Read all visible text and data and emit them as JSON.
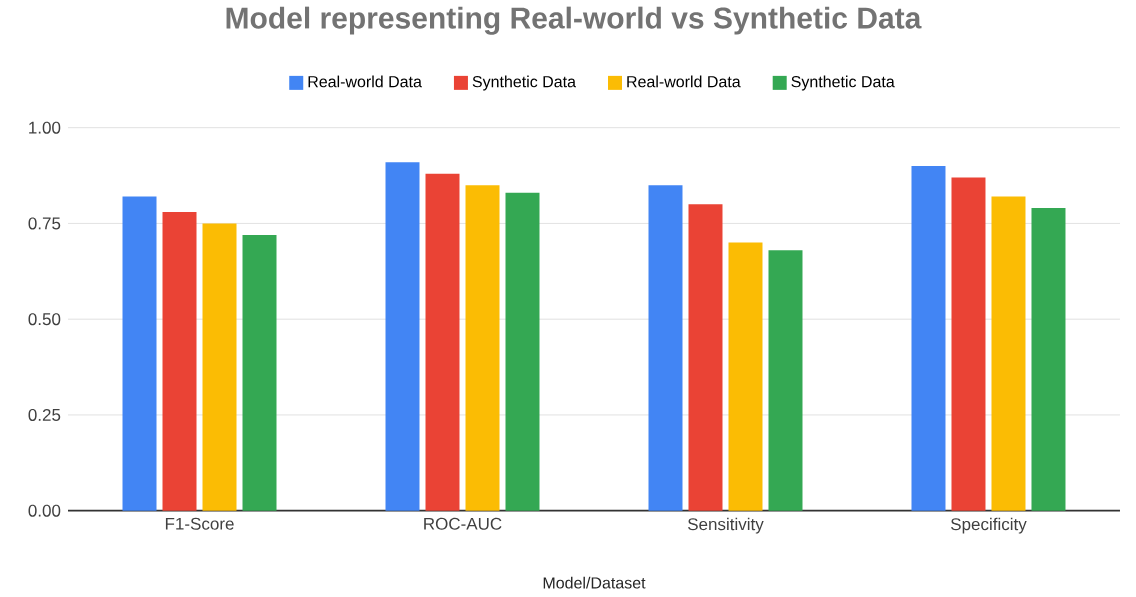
{
  "chart_data": {
    "type": "bar",
    "title": "Model representing Real-world vs Synthetic Data",
    "xlabel": "Model/Dataset",
    "categories": [
      "F1-Score",
      "ROC-AUC",
      "Sensitivity",
      "Specificity"
    ],
    "series": [
      {
        "name": "Real-world Data",
        "color": "#4285f4",
        "values": [
          0.82,
          0.91,
          0.85,
          0.9
        ]
      },
      {
        "name": "Synthetic Data",
        "color": "#ea4335",
        "values": [
          0.78,
          0.88,
          0.8,
          0.87
        ]
      },
      {
        "name": "Real-world Data",
        "color": "#fbbc04",
        "values": [
          0.75,
          0.85,
          0.7,
          0.82
        ]
      },
      {
        "name": "Synthetic Data",
        "color": "#34a853",
        "values": [
          0.72,
          0.83,
          0.68,
          0.79
        ]
      }
    ],
    "ylim": [
      0,
      1
    ],
    "yticks": [
      {
        "value": 0,
        "label": "0.00"
      },
      {
        "value": 0.25,
        "label": "0.25"
      },
      {
        "value": 0.5,
        "label": "0.50"
      },
      {
        "value": 0.75,
        "label": "0.75"
      },
      {
        "value": 1,
        "label": "1.00"
      }
    ],
    "grid": "y",
    "legend": "top"
  }
}
